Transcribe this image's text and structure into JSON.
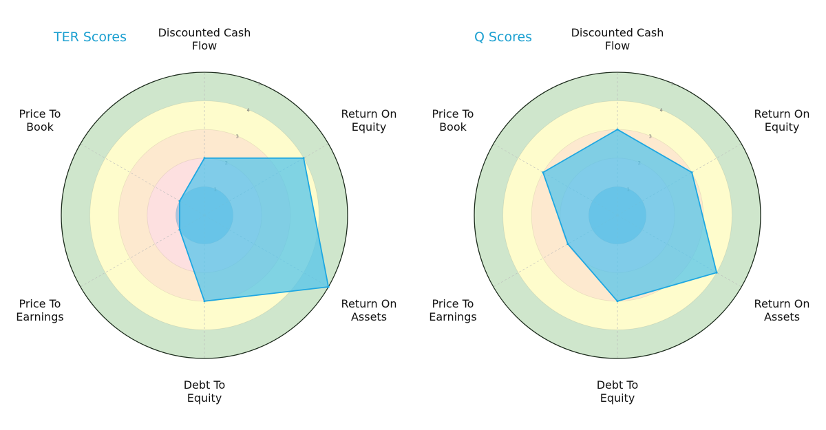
{
  "chart_data": [
    {
      "type": "radar",
      "title": "TER Scores",
      "categories": [
        "Discounted Cash Flow",
        "Return On Equity",
        "Return On Assets",
        "Debt To Equity",
        "Price To Earnings",
        "Price To Book"
      ],
      "values": [
        2,
        4,
        5,
        3,
        1,
        1
      ],
      "rlim": [
        0,
        5
      ],
      "rticks": [
        "1",
        "2",
        "3",
        "4",
        "5"
      ]
    },
    {
      "type": "radar",
      "title": "Q Scores",
      "categories": [
        "Discounted Cash Flow",
        "Return On Equity",
        "Return On Assets",
        "Debt To Equity",
        "Price To Earnings",
        "Price To Book"
      ],
      "values": [
        3,
        3,
        4,
        3,
        2,
        3
      ],
      "rlim": [
        0,
        5
      ],
      "rticks": [
        "1",
        "2",
        "3",
        "4",
        "5"
      ]
    }
  ],
  "colors": {
    "title": "#1a9fd0",
    "ring_1": "#a9c4de",
    "ring_2": "#fde0e0",
    "ring_3": "#fde9cf",
    "ring_4": "#fefccc",
    "ring_5": "#cfe6cc",
    "series_fill": "#4fc3ec",
    "series_stroke": "#1ea7e1"
  }
}
